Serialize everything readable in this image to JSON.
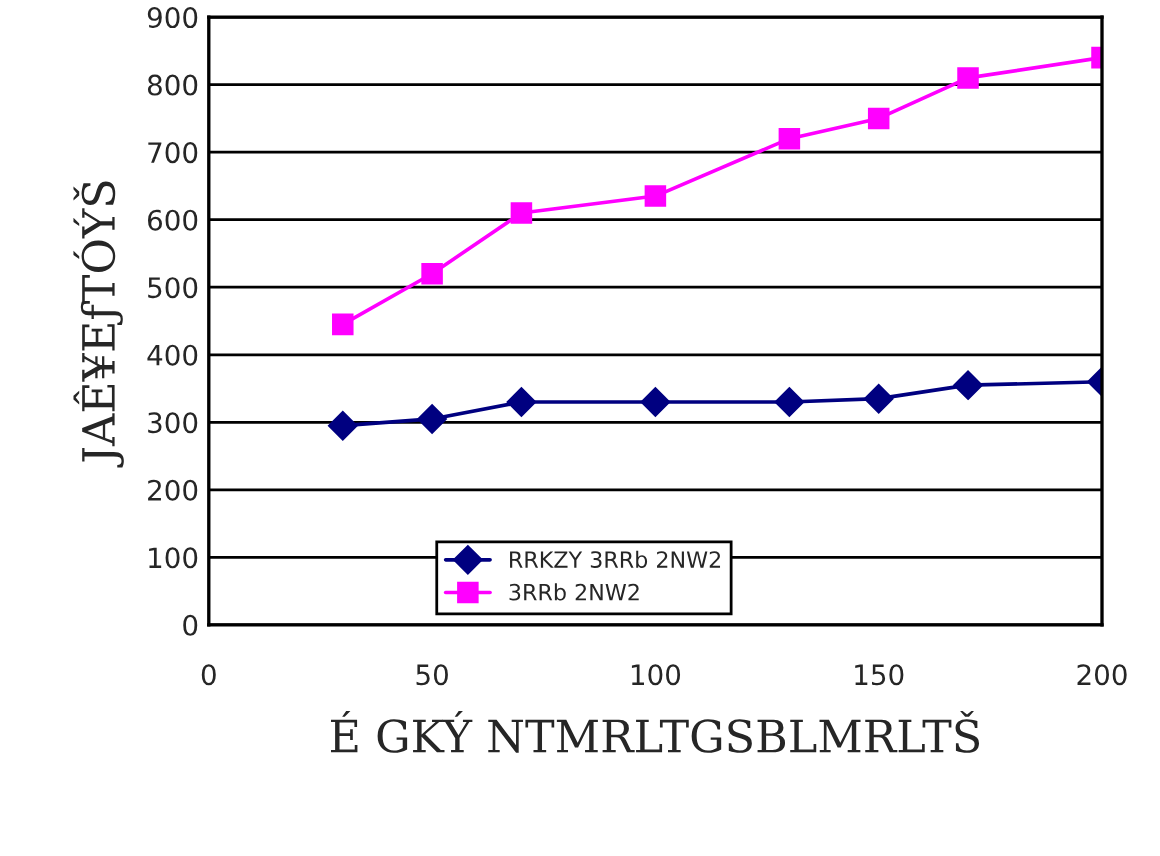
{
  "chart_data": {
    "type": "line",
    "xlabel": "É GKÝ NTMRLTGSBLMRLTŠ",
    "ylabel": "JAÊ¥EƒTÓÝŠ",
    "x": [
      30,
      50,
      70,
      100,
      130,
      150,
      170,
      200
    ],
    "series": [
      {
        "name": "RRKZY 3RRb 2NW2",
        "color": "#000080",
        "marker": "diamond",
        "values": [
          295,
          305,
          330,
          330,
          330,
          335,
          355,
          360
        ]
      },
      {
        "name": "3RRb 2NW2",
        "color": "#ff00ff",
        "marker": "square",
        "values": [
          445,
          520,
          610,
          635,
          720,
          750,
          810,
          840
        ]
      }
    ],
    "xlim": [
      0,
      200
    ],
    "xticks": [
      0,
      50,
      100,
      150,
      200
    ],
    "ylim": [
      0,
      900
    ],
    "yticks": [
      0,
      100,
      200,
      300,
      400,
      500,
      600,
      700,
      800,
      900
    ],
    "grid": "y",
    "legend": "bottom"
  }
}
